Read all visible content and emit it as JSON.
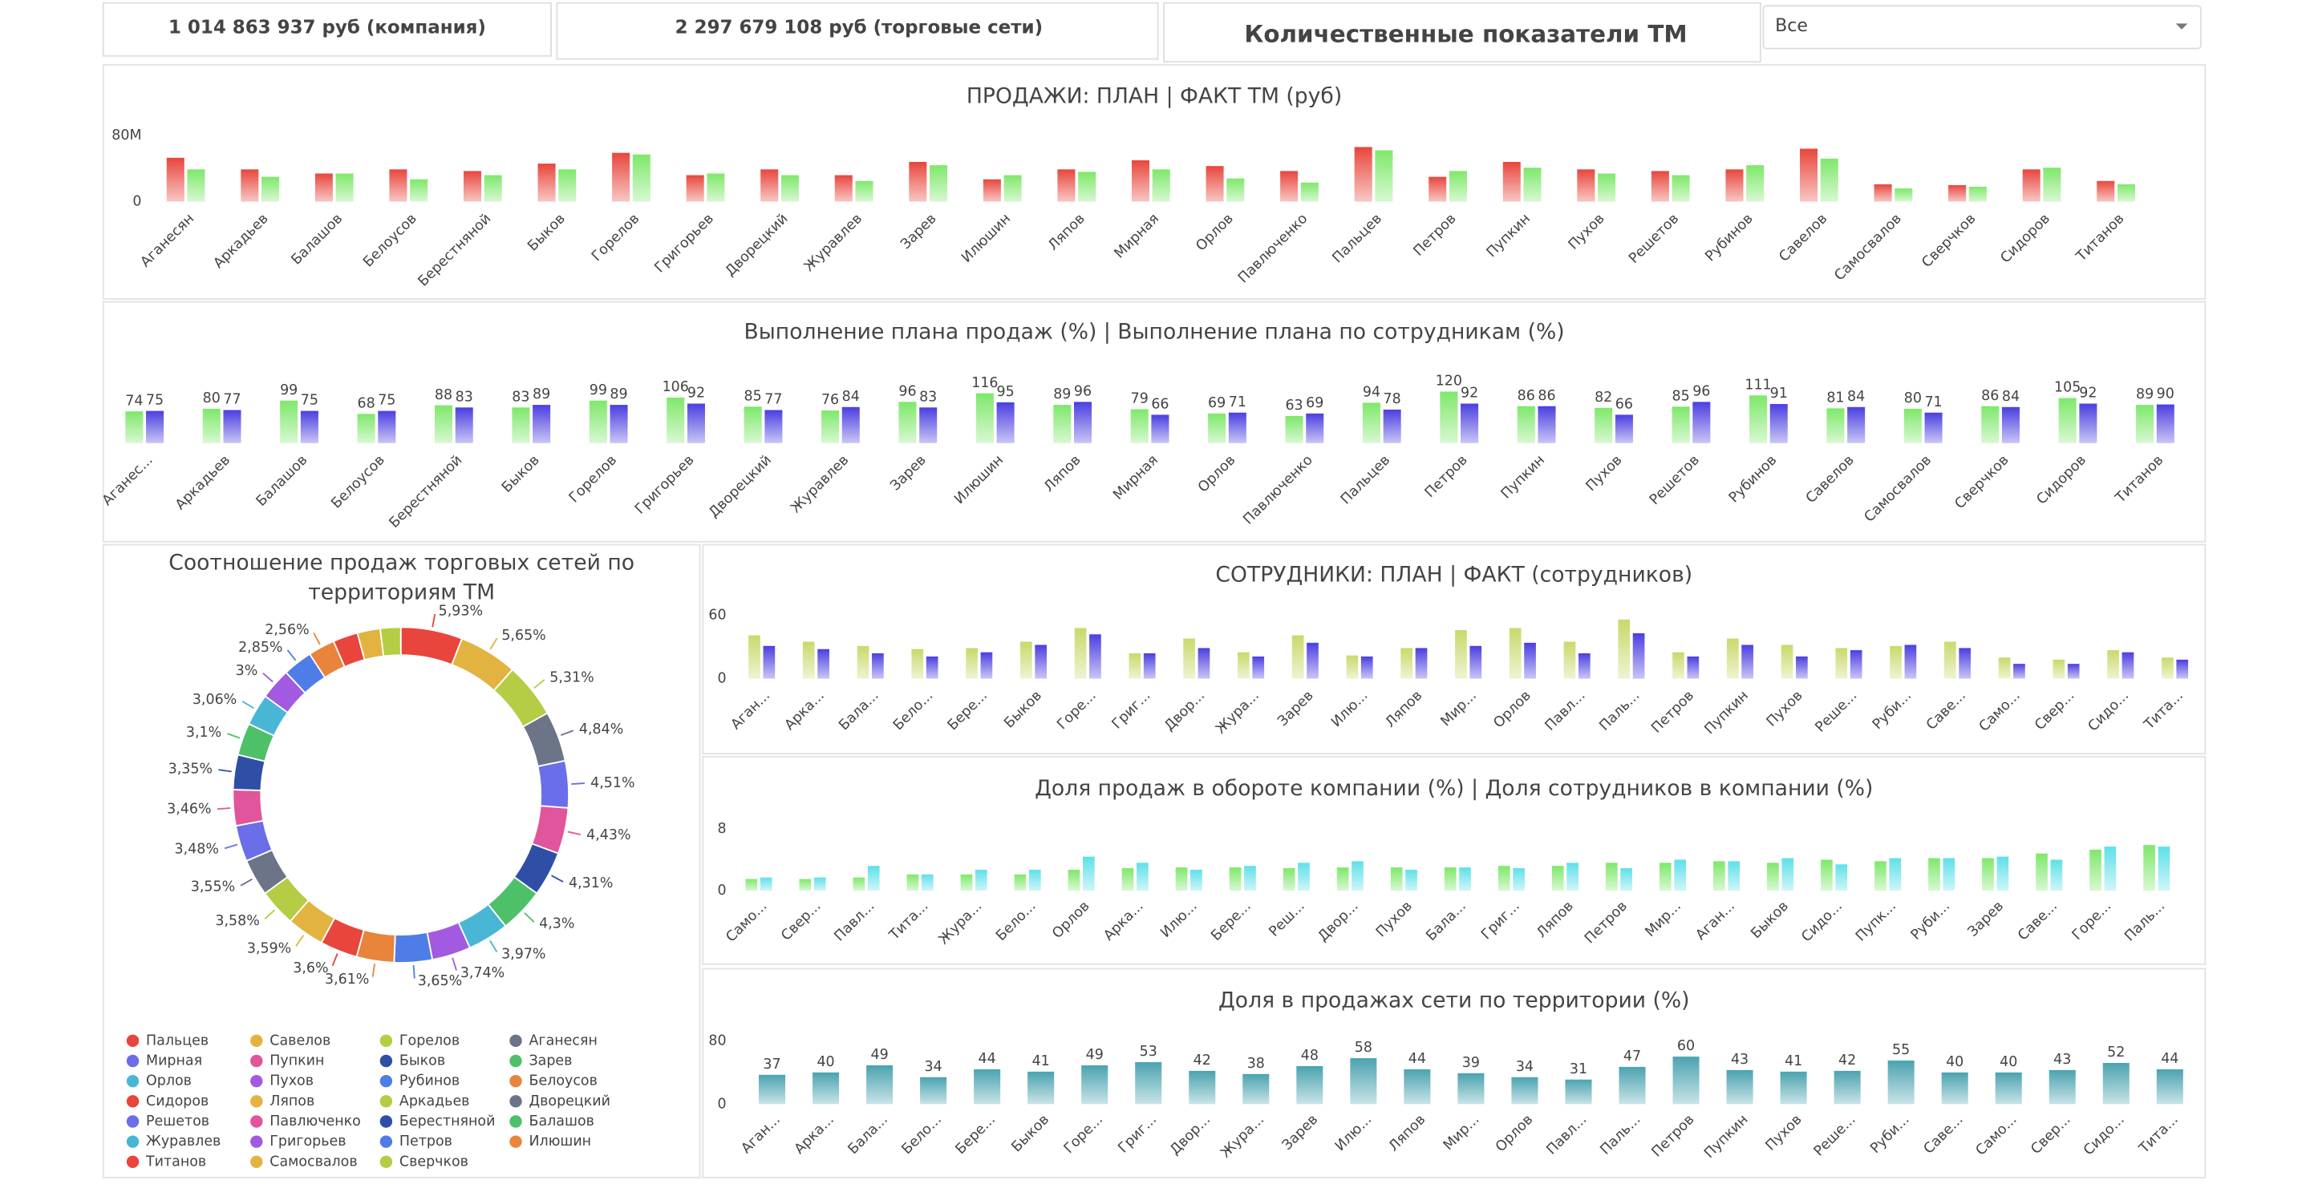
{
  "kpis": [
    "1 014 863 937 руб (компания)",
    "2 297 679 108 руб (торговые сети)"
  ],
  "section_title": "Количественные показатели ТМ",
  "filter": "Все",
  "chart_data": [
    {
      "type": "bar",
      "title": "ПРОДАЖИ: ПЛАН | ФАКТ ТМ (руб)",
      "categories": [
        "Аганесян",
        "Аркадьев",
        "Балашов",
        "Белоусов",
        "Берестняной",
        "Быков",
        "Горелов",
        "Григорьев",
        "Дворецкий",
        "Журавлев",
        "Зарев",
        "Илюшин",
        "Ляпов",
        "Мирная",
        "Орлов",
        "Павлюченко",
        "Пальцев",
        "Петров",
        "Пупкин",
        "Пухов",
        "Решетов",
        "Рубинов",
        "Савелов",
        "Самосвалов",
        "Сверчков",
        "Сидоров",
        "Титанов"
      ],
      "series": [
        {
          "color": "#e8463c",
          "values": [
            53000000,
            39000000,
            34000000,
            39000000,
            37000000,
            46000000,
            59000000,
            32000000,
            39000000,
            32000000,
            48000000,
            27000000,
            39000000,
            50000000,
            43000000,
            37000000,
            66000000,
            30000000,
            48000000,
            39000000,
            37000000,
            39000000,
            64000000,
            21000000,
            20000000,
            39000000,
            25000000
          ]
        },
        {
          "color": "#7ee86a",
          "values": [
            39000000,
            30000000,
            34000000,
            27000000,
            32000000,
            39000000,
            57000000,
            34000000,
            32000000,
            25000000,
            44000000,
            32000000,
            36000000,
            39000000,
            28000000,
            23000000,
            62000000,
            37000000,
            41000000,
            34000000,
            32000000,
            44000000,
            52000000,
            16000000,
            18000000,
            41000000,
            21000000
          ]
        }
      ],
      "ylim": [
        0,
        80000000
      ],
      "yticks": [
        0,
        {
          "value": 80000000,
          "label": "80M"
        }
      ]
    },
    {
      "type": "bar",
      "title": "Выполнение плана продаж (%) | Выполнение плана по сотрудникам (%)",
      "categories": [
        "Аганес...",
        "Аркадьев",
        "Балашов",
        "Белоусов",
        "Берестняной",
        "Быков",
        "Горелов",
        "Григорьев",
        "Дворецкий",
        "Журавлев",
        "Зарев",
        "Илюшин",
        "Ляпов",
        "Мирная",
        "Орлов",
        "Павлюченко",
        "Пальцев",
        "Петров",
        "Пупкин",
        "Пухов",
        "Решетов",
        "Рубинов",
        "Савелов",
        "Самосвалов",
        "Сверчков",
        "Сидоров",
        "Титанов"
      ],
      "series": [
        {
          "color": "#7ee86a",
          "values": [
            74,
            80,
            99,
            68,
            88,
            83,
            99,
            106,
            85,
            76,
            96,
            116,
            89,
            79,
            69,
            63,
            94,
            120,
            86,
            82,
            85,
            111,
            81,
            80,
            86,
            105,
            89
          ]
        },
        {
          "color": "#4b3fe0",
          "values": [
            75,
            77,
            75,
            75,
            83,
            89,
            89,
            92,
            77,
            84,
            83,
            95,
            96,
            66,
            71,
            69,
            78,
            92,
            86,
            66,
            96,
            91,
            84,
            71,
            84,
            92,
            90
          ]
        }
      ],
      "data_labels": true
    },
    {
      "type": "donut",
      "title": "Соотношение продаж торговых сетей  по территориям ТМ",
      "categories": [
        "Пальцев",
        "Савелов",
        "Горелов",
        "Аганесян",
        "Мирная",
        "Пупкин",
        "Быков",
        "Зарев",
        "Орлов",
        "Пухов",
        "Рубинов",
        "Белоусов",
        "Сидоров",
        "Ляпов",
        "Аркадьев",
        "Дворецкий",
        "Решетов",
        "Павлюченко",
        "Берестняной",
        "Балашов",
        "Журавлев",
        "Григорьев",
        "Петров",
        "Илюшин",
        "Титанов",
        "Самосвалов",
        "Сверчков"
      ],
      "values": [
        5.93,
        5.65,
        5.31,
        4.84,
        4.51,
        4.43,
        4.31,
        4.3,
        3.97,
        3.74,
        3.65,
        3.61,
        3.6,
        3.59,
        3.58,
        3.55,
        3.48,
        3.46,
        3.35,
        3.1,
        3.06,
        3,
        2.85,
        2.56,
        2.4,
        2.2,
        1.97
      ],
      "value_labels": [
        "5,93%",
        "5,65%",
        "5,31%",
        "4,84%",
        "4,51%",
        "4,43%",
        "4,31%",
        "4,3%",
        "3,97%",
        "3,74%",
        "3,65%",
        "3,61%",
        "3,6%",
        "3,59%",
        "3,58%",
        "3,55%",
        "3,48%",
        "3,46%",
        "3,35%",
        "3,1%",
        "3,06%",
        "3%",
        "2,85%",
        "2,56%",
        null,
        null,
        null
      ],
      "colors": [
        "#e8453c",
        "#e3b341",
        "#b5cc45",
        "#6b7587",
        "#6a6ee8",
        "#e0559b",
        "#2f4fa6",
        "#4fc06a",
        "#4ab6d6",
        "#a25ae0",
        "#4f7de8",
        "#e8843c",
        "#e8453c",
        "#e3b341",
        "#b5cc45",
        "#6b7587",
        "#6a6ee8",
        "#e0559b",
        "#2f4fa6",
        "#4fc06a",
        "#4ab6d6",
        "#a25ae0",
        "#4f7de8",
        "#e8843c",
        "#e8453c",
        "#e3b341",
        "#b5cc45"
      ]
    },
    {
      "type": "bar",
      "title": "СОТРУДНИКИ: ПЛАН | ФАКТ (сотрудников)",
      "categories": [
        "Аган...",
        "Арка...",
        "Бала...",
        "Бело...",
        "Бере...",
        "Быков",
        "Горе...",
        "Григ...",
        "Двор...",
        "Жура...",
        "Зарев",
        "Илю...",
        "Ляпов",
        "Мир...",
        "Орлов",
        "Павл...",
        "Паль...",
        "Петров",
        "Пупкин",
        "Пухов",
        "Реше...",
        "Руби...",
        "Саве...",
        "Само...",
        "Свер...",
        "Сидо...",
        "Тита..."
      ],
      "series": [
        {
          "color": "#c9d96a",
          "values": [
            41,
            35,
            31,
            28,
            29,
            35,
            48,
            24,
            38,
            25,
            41,
            22,
            29,
            46,
            48,
            35,
            56,
            25,
            38,
            32,
            29,
            31,
            35,
            20,
            18,
            27,
            20
          ]
        },
        {
          "color": "#4b3fe0",
          "values": [
            31,
            28,
            24,
            21,
            25,
            32,
            42,
            24,
            29,
            21,
            34,
            21,
            29,
            31,
            34,
            24,
            43,
            21,
            32,
            21,
            27,
            32,
            29,
            14,
            14,
            25,
            18
          ]
        }
      ],
      "ylim": [
        0,
        60
      ],
      "yticks": [
        0,
        60
      ]
    },
    {
      "type": "bar",
      "title": "Доля продаж в обороте компании (%) | Доля сотрудников в компании (%)",
      "categories": [
        "Само...",
        "Свер...",
        "Павл...",
        "Тита...",
        "Жура...",
        "Бело...",
        "Орлов",
        "Арка...",
        "Илю...",
        "Бере...",
        "Реш...",
        "Двор...",
        "Пухов",
        "Бала...",
        "Григ...",
        "Ляпов",
        "Петров",
        "Мир...",
        "Аган...",
        "Быков",
        "Сидо...",
        "Пупк...",
        "Руби...",
        "Зарев",
        "Саве...",
        "Горе...",
        "Паль..."
      ],
      "series": [
        {
          "color": "#7ee86a",
          "values": [
            1.5,
            1.5,
            1.7,
            2.1,
            2.1,
            2.1,
            2.7,
            2.9,
            3.0,
            3.0,
            2.9,
            3.0,
            3.0,
            3.0,
            3.2,
            3.2,
            3.6,
            3.6,
            3.8,
            3.6,
            4.0,
            3.8,
            4.2,
            4.2,
            4.8,
            5.3,
            5.9
          ]
        },
        {
          "color": "#5fe0e8",
          "values": [
            1.7,
            1.7,
            3.2,
            2.1,
            2.7,
            2.7,
            4.4,
            3.6,
            2.7,
            3.2,
            3.6,
            3.8,
            2.7,
            3.0,
            2.9,
            3.6,
            2.9,
            4.0,
            3.8,
            4.2,
            3.4,
            4.2,
            4.2,
            4.4,
            4.0,
            5.7,
            5.7
          ]
        }
      ],
      "ylim": [
        0,
        8
      ],
      "yticks": [
        0,
        8
      ]
    },
    {
      "type": "bar",
      "title": "Доля в продажах сети по территории (%)",
      "categories": [
        "Аган...",
        "Арка...",
        "Бала...",
        "Бело...",
        "Бере...",
        "Быков",
        "Горе...",
        "Григ...",
        "Двор...",
        "Жура...",
        "Зарев",
        "Илю...",
        "Ляпов",
        "Мир...",
        "Орлов",
        "Павл...",
        "Паль...",
        "Петров",
        "Пупкин",
        "Пухов",
        "Реше...",
        "Руби...",
        "Саве...",
        "Само...",
        "Свер...",
        "Сидо...",
        "Тита..."
      ],
      "values": [
        37,
        40,
        49,
        34,
        44,
        41,
        49,
        53,
        42,
        38,
        48,
        58,
        44,
        39,
        34,
        31,
        47,
        60,
        43,
        41,
        42,
        55,
        40,
        40,
        43,
        52,
        44
      ],
      "color": "#4aa3b0",
      "ylim": [
        0,
        80
      ],
      "yticks": [
        0,
        80
      ],
      "data_labels": true
    }
  ]
}
